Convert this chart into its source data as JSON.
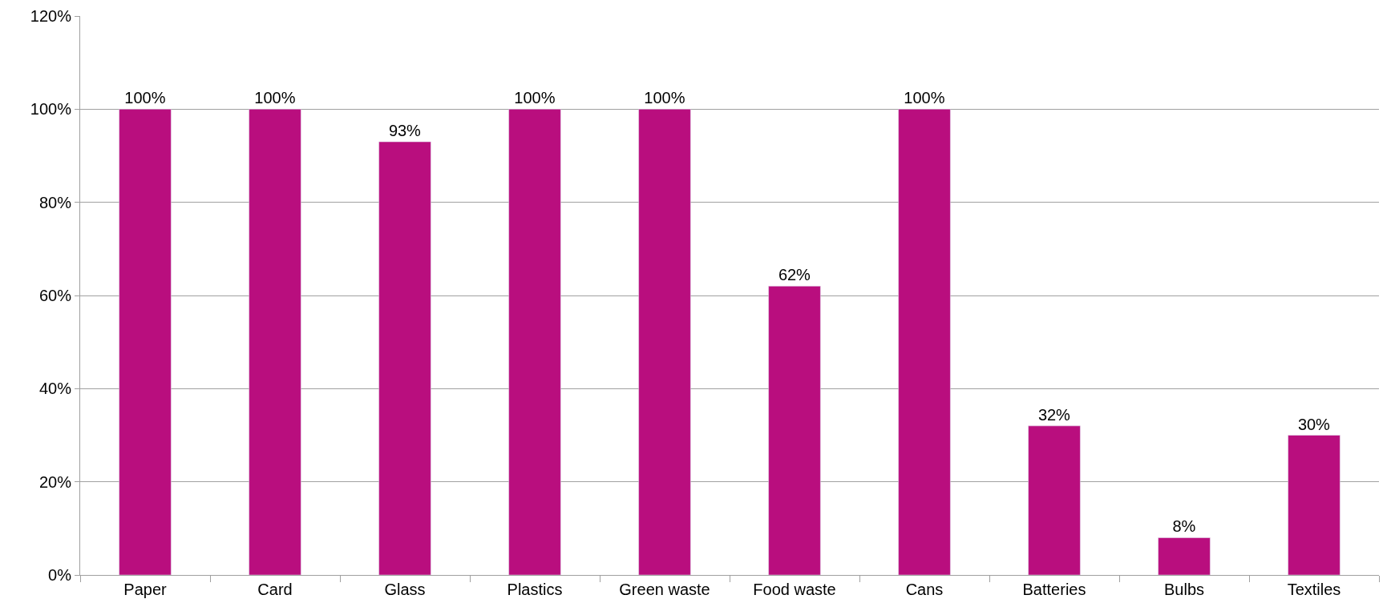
{
  "chart_data": {
    "type": "bar",
    "categories": [
      "Paper",
      "Card",
      "Glass",
      "Plastics",
      "Green waste",
      "Food waste",
      "Cans",
      "Batteries",
      "Bulbs",
      "Textiles"
    ],
    "values": [
      100,
      100,
      93,
      100,
      100,
      62,
      100,
      32,
      8,
      30
    ],
    "value_labels": [
      "100%",
      "100%",
      "93%",
      "100%",
      "100%",
      "62%",
      "100%",
      "32%",
      "8%",
      "30%"
    ],
    "color": "#b90e7e",
    "ylim": [
      0,
      120
    ],
    "yticks": [
      {
        "value": 0,
        "label": "0%"
      },
      {
        "value": 20,
        "label": "20%"
      },
      {
        "value": 40,
        "label": "40%"
      },
      {
        "value": 60,
        "label": "60%"
      },
      {
        "value": 80,
        "label": "80%"
      },
      {
        "value": 100,
        "label": "100%"
      },
      {
        "value": 120,
        "label": "120%"
      }
    ],
    "grid": "y"
  }
}
